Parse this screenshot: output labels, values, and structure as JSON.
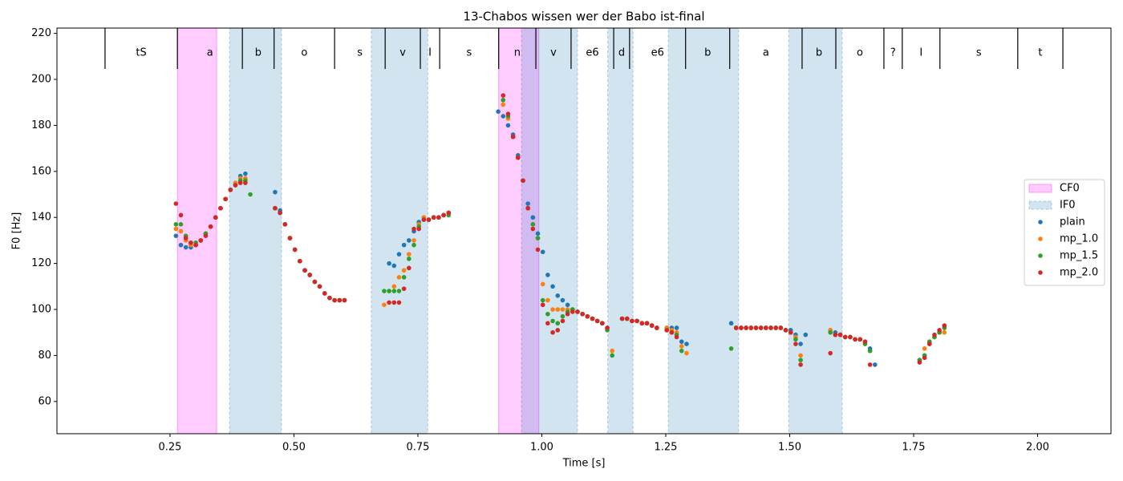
{
  "chart_data": {
    "type": "scatter",
    "title": "13-Chabos wissen wer der Babo ist-final",
    "xlabel": "Time [s]",
    "ylabel": "F0 [Hz]",
    "xlim": [
      0.022,
      2.148
    ],
    "ylim": [
      46,
      222.3
    ],
    "xticks": [
      {
        "value": 0.25,
        "label": "0.25"
      },
      {
        "value": 0.5,
        "label": "0.50"
      },
      {
        "value": 0.75,
        "label": "0.75"
      },
      {
        "value": 1.0,
        "label": "1.00"
      },
      {
        "value": 1.25,
        "label": "1.25"
      },
      {
        "value": 1.5,
        "label": "1.50"
      },
      {
        "value": 1.75,
        "label": "1.75"
      },
      {
        "value": 2.0,
        "label": "2.00"
      }
    ],
    "yticks": [
      60,
      80,
      100,
      120,
      140,
      160,
      180,
      200,
      220
    ],
    "legend": "right",
    "segments": {
      "labels": [
        "tS",
        "a",
        "b",
        "o",
        "s",
        "v",
        "I",
        "s",
        "n",
        "v",
        "e6",
        "d",
        "e6",
        "b",
        "a",
        "b",
        "o",
        "?",
        "I",
        "s",
        "t"
      ],
      "boundaries": [
        0.119,
        0.265,
        0.396,
        0.46,
        0.582,
        0.684,
        0.755,
        0.794,
        0.913,
        0.988,
        1.059,
        1.145,
        1.177,
        1.29,
        1.379,
        1.525,
        1.593,
        1.69,
        1.727,
        1.803,
        1.96,
        2.051
      ]
    },
    "regions": [
      {
        "name": "CF0",
        "color": "#ff00ff",
        "spans": [
          [
            0.265,
            0.344
          ],
          [
            0.913,
            0.994
          ]
        ]
      },
      {
        "name": "IF0",
        "color": "#1f77b4",
        "spans": [
          [
            0.37,
            0.475
          ],
          [
            0.656,
            0.77
          ],
          [
            0.959,
            1.072
          ],
          [
            1.133,
            1.184
          ],
          [
            1.255,
            1.397
          ],
          [
            1.498,
            1.606
          ]
        ]
      }
    ],
    "x": [
      0.262,
      0.272,
      0.282,
      0.292,
      0.302,
      0.312,
      0.322,
      0.332,
      0.342,
      0.352,
      0.362,
      0.372,
      0.382,
      0.392,
      0.402,
      0.412,
      0.462,
      0.472,
      0.482,
      0.492,
      0.502,
      0.512,
      0.522,
      0.532,
      0.542,
      0.552,
      0.562,
      0.572,
      0.582,
      0.592,
      0.602,
      0.682,
      0.692,
      0.702,
      0.712,
      0.722,
      0.732,
      0.742,
      0.752,
      0.762,
      0.772,
      0.782,
      0.792,
      0.802,
      0.812,
      0.912,
      0.922,
      0.932,
      0.942,
      0.952,
      0.962,
      0.972,
      0.982,
      0.992,
      1.002,
      1.012,
      1.022,
      1.032,
      1.042,
      1.052,
      1.062,
      1.072,
      1.082,
      1.092,
      1.102,
      1.112,
      1.122,
      1.132,
      1.142,
      1.162,
      1.172,
      1.182,
      1.192,
      1.202,
      1.212,
      1.222,
      1.232,
      1.252,
      1.262,
      1.272,
      1.282,
      1.292,
      1.382,
      1.392,
      1.402,
      1.412,
      1.422,
      1.432,
      1.442,
      1.452,
      1.462,
      1.472,
      1.482,
      1.492,
      1.502,
      1.512,
      1.522,
      1.532,
      1.582,
      1.592,
      1.602,
      1.612,
      1.622,
      1.632,
      1.642,
      1.652,
      1.662,
      1.672,
      1.762,
      1.772,
      1.782,
      1.792,
      1.802,
      1.812
    ],
    "series": [
      {
        "name": "plain",
        "color": "#1f77b4",
        "values": [
          132,
          128,
          127,
          127,
          128,
          130,
          133,
          136,
          140,
          144,
          148,
          152,
          155,
          158,
          159,
          null,
          151,
          143,
          137,
          131,
          126,
          121,
          117,
          115,
          112,
          110,
          107,
          105,
          104,
          104,
          104,
          null,
          120,
          119,
          124,
          128,
          130,
          134,
          138,
          140,
          139,
          140,
          140,
          141,
          142,
          186,
          184,
          180,
          176,
          167,
          156,
          146,
          140,
          133,
          125,
          115,
          110,
          106,
          104,
          102,
          100,
          99,
          98,
          97,
          96,
          95,
          94,
          92,
          null,
          96,
          96,
          95,
          95,
          94,
          94,
          93,
          92,
          92,
          92,
          92,
          86,
          85,
          94,
          92,
          92,
          92,
          92,
          92,
          92,
          92,
          92,
          92,
          92,
          91,
          91,
          89,
          85,
          89,
          91,
          90,
          89,
          88,
          88,
          87,
          87,
          86,
          83,
          76,
          78,
          80,
          85,
          88,
          90,
          92
        ]
      },
      {
        "name": "mp_1.0",
        "color": "#ff7f0e",
        "values": [
          135,
          134,
          130,
          128,
          128,
          130,
          133,
          136,
          140,
          144,
          148,
          152,
          155,
          157,
          157,
          null,
          144,
          142,
          137,
          131,
          126,
          121,
          117,
          115,
          112,
          110,
          107,
          105,
          104,
          104,
          104,
          102,
          108,
          110,
          114,
          117,
          124,
          130,
          137,
          140,
          139,
          140,
          140,
          141,
          142,
          null,
          189,
          183,
          175,
          166,
          156,
          144,
          137,
          131,
          111,
          104,
          100,
          100,
          100,
          100,
          100,
          99,
          98,
          97,
          96,
          95,
          94,
          92,
          82,
          96,
          96,
          95,
          95,
          94,
          94,
          93,
          92,
          92,
          91,
          90,
          84,
          81,
          null,
          92,
          92,
          92,
          92,
          92,
          92,
          92,
          92,
          92,
          92,
          91,
          90,
          88,
          80,
          null,
          91,
          89,
          89,
          88,
          88,
          87,
          87,
          85,
          82,
          null,
          null,
          83,
          86,
          88,
          90,
          90
        ]
      },
      {
        "name": "mp_1.5",
        "color": "#2ca02c",
        "values": [
          137,
          137,
          132,
          129,
          129,
          130,
          133,
          136,
          140,
          144,
          148,
          152,
          154,
          156,
          156,
          150,
          144,
          142,
          137,
          131,
          126,
          121,
          117,
          115,
          112,
          110,
          107,
          105,
          104,
          104,
          104,
          108,
          108,
          108,
          108,
          114,
          122,
          128,
          136,
          139,
          139,
          140,
          140,
          141,
          141,
          null,
          191,
          184,
          175,
          166,
          156,
          144,
          137,
          131,
          104,
          98,
          95,
          94,
          97,
          99,
          100,
          99,
          98,
          97,
          96,
          95,
          94,
          91,
          80,
          96,
          96,
          95,
          95,
          94,
          94,
          93,
          92,
          91,
          90,
          89,
          82,
          null,
          83,
          92,
          92,
          92,
          92,
          92,
          92,
          92,
          92,
          92,
          92,
          91,
          90,
          87,
          78,
          null,
          90,
          89,
          89,
          88,
          88,
          87,
          87,
          85,
          82,
          null,
          78,
          80,
          86,
          88,
          90,
          92
        ]
      },
      {
        "name": "mp_2.0",
        "color": "#d62728",
        "values": [
          146,
          141,
          131,
          129,
          128,
          130,
          132,
          136,
          140,
          144,
          148,
          152,
          154,
          155,
          155,
          null,
          144,
          142,
          137,
          131,
          126,
          121,
          117,
          115,
          112,
          110,
          107,
          105,
          104,
          104,
          104,
          null,
          103,
          103,
          103,
          109,
          118,
          135,
          135,
          139,
          139,
          140,
          140,
          141,
          142,
          null,
          193,
          185,
          175,
          166,
          156,
          144,
          135,
          126,
          102,
          94,
          90,
          91,
          95,
          98,
          99,
          99,
          98,
          97,
          96,
          95,
          94,
          92,
          null,
          96,
          96,
          95,
          95,
          94,
          94,
          93,
          92,
          91,
          90,
          88,
          null,
          null,
          null,
          92,
          92,
          92,
          92,
          92,
          92,
          92,
          92,
          92,
          92,
          91,
          90,
          85,
          76,
          null,
          81,
          89,
          89,
          88,
          88,
          87,
          87,
          86,
          76,
          null,
          77,
          79,
          85,
          89,
          91,
          93
        ]
      }
    ]
  }
}
